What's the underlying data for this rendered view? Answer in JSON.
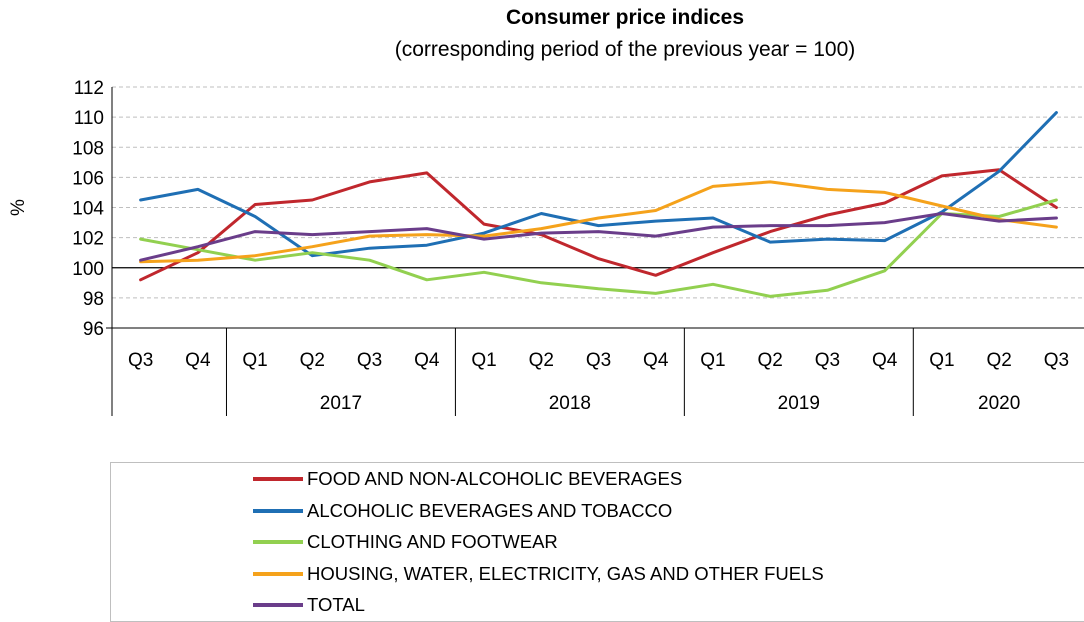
{
  "chart_data": {
    "type": "line",
    "title": "Consumer price indices",
    "subtitle": "(corresponding period of the previous year = 100)",
    "ylabel": "%",
    "ylim": [
      96,
      112
    ],
    "yticks": [
      96,
      98,
      100,
      102,
      104,
      106,
      108,
      110,
      112
    ],
    "grid": true,
    "reference_line": 100,
    "x": [
      "Q3",
      "Q4",
      "Q1",
      "Q2",
      "Q3",
      "Q4",
      "Q1",
      "Q2",
      "Q3",
      "Q4",
      "Q1",
      "Q2",
      "Q3",
      "Q4",
      "Q1",
      "Q2",
      "Q3"
    ],
    "year_groups": [
      {
        "label": "",
        "count": 2
      },
      {
        "label": "2017",
        "count": 4
      },
      {
        "label": "2018",
        "count": 4
      },
      {
        "label": "2019",
        "count": 4
      },
      {
        "label": "2020",
        "count": 3
      }
    ],
    "legend_position": "bottom",
    "series": [
      {
        "name": "FOOD AND NON-ALCOHOLIC BEVERAGES",
        "color": "#c0272d",
        "values": [
          99.2,
          101.0,
          104.2,
          104.5,
          105.7,
          106.3,
          102.9,
          102.2,
          100.6,
          99.5,
          101.0,
          102.4,
          103.5,
          104.3,
          106.1,
          106.5,
          104.0
        ]
      },
      {
        "name": "ALCOHOLIC BEVERAGES AND TOBACCO",
        "color": "#1f6fb4",
        "values": [
          104.5,
          105.2,
          103.4,
          100.8,
          101.3,
          101.5,
          102.3,
          103.6,
          102.8,
          103.1,
          103.3,
          101.7,
          101.9,
          101.8,
          103.7,
          106.4,
          110.3
        ]
      },
      {
        "name": "CLOTHING AND FOOTWEAR",
        "color": "#92d050",
        "values": [
          101.9,
          101.2,
          100.5,
          101.0,
          100.5,
          99.2,
          99.7,
          99.0,
          98.6,
          98.3,
          98.9,
          98.1,
          98.5,
          99.8,
          103.6,
          103.4,
          104.5
        ]
      },
      {
        "name": "HOUSING, WATER, ELECTRICITY, GAS AND OTHER FUELS",
        "color": "#f5a21b",
        "values": [
          100.4,
          100.5,
          100.8,
          101.4,
          102.1,
          102.2,
          102.1,
          102.6,
          103.3,
          103.8,
          105.4,
          105.7,
          105.2,
          105.0,
          104.1,
          103.2,
          102.7
        ]
      },
      {
        "name": "TOTAL",
        "color": "#6a3d8a",
        "values": [
          100.5,
          101.4,
          102.4,
          102.2,
          102.4,
          102.6,
          101.9,
          102.3,
          102.4,
          102.1,
          102.7,
          102.8,
          102.8,
          103.0,
          103.6,
          103.1,
          103.3
        ]
      }
    ]
  }
}
